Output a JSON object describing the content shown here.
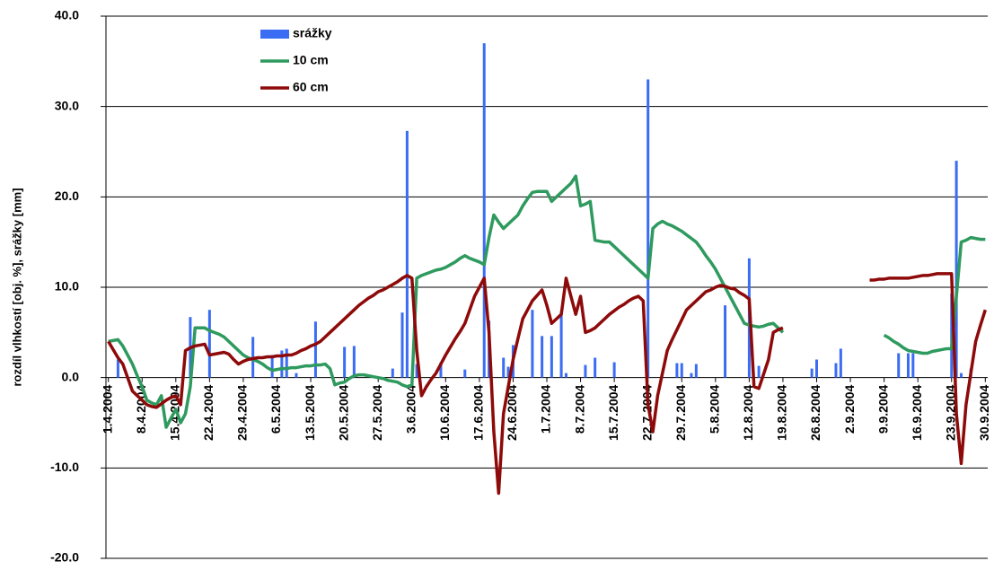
{
  "chart_data": {
    "type": "bar",
    "y_label": "rozdíl vlhkostí [obj. %], srážky [mm]",
    "categories": [
      "1.4.2004",
      null,
      null,
      null,
      null,
      null,
      null,
      "8.4.2004",
      null,
      null,
      null,
      null,
      null,
      null,
      "15.4.2004",
      null,
      null,
      null,
      null,
      null,
      null,
      "22.4.2004",
      null,
      null,
      null,
      null,
      null,
      null,
      "29.4.2004",
      null,
      null,
      null,
      null,
      null,
      null,
      "6.5.2004",
      null,
      null,
      null,
      null,
      null,
      null,
      "13.5.2004",
      null,
      null,
      null,
      null,
      null,
      null,
      "20.5.2004",
      null,
      null,
      null,
      null,
      null,
      null,
      "27.5.2004",
      null,
      null,
      null,
      null,
      null,
      null,
      "3.6.2004",
      null,
      null,
      null,
      null,
      null,
      null,
      "10.6.2004",
      null,
      null,
      null,
      null,
      null,
      null,
      "17.6.2004",
      null,
      null,
      null,
      null,
      null,
      null,
      "24.6.2004",
      null,
      null,
      null,
      null,
      null,
      null,
      "1.7.2004",
      null,
      null,
      null,
      null,
      null,
      null,
      "8.7.2004",
      null,
      null,
      null,
      null,
      null,
      null,
      "15.7.2004",
      null,
      null,
      null,
      null,
      null,
      null,
      "22.7.2004",
      null,
      null,
      null,
      null,
      null,
      null,
      "29.7.2004",
      null,
      null,
      null,
      null,
      null,
      null,
      "5.8.2004",
      null,
      null,
      null,
      null,
      null,
      null,
      "12.8.2004",
      null,
      null,
      null,
      null,
      null,
      null,
      "19.8.2004",
      null,
      null,
      null,
      null,
      null,
      null,
      "26.8.2004",
      null,
      null,
      null,
      null,
      null,
      null,
      "2.9.2004",
      null,
      null,
      null,
      null,
      null,
      null,
      "9.9.2004",
      null,
      null,
      null,
      null,
      null,
      null,
      "16.9.2004",
      null,
      null,
      null,
      null,
      null,
      null,
      "23.9.2004",
      null,
      null,
      null,
      null,
      null,
      null,
      "30.9.2004"
    ],
    "series": [
      {
        "name": "srážky",
        "type": "bar",
        "color": "#3a6cf4",
        "values": [
          0,
          0,
          2.0,
          0,
          0,
          0,
          0,
          0,
          0,
          0,
          0,
          0,
          0,
          0,
          0,
          0,
          0,
          6.7,
          0,
          0,
          0,
          7.5,
          0,
          0,
          0,
          0,
          0,
          0,
          0,
          0,
          4.5,
          0,
          0,
          0,
          2.5,
          0,
          3.0,
          3.2,
          0,
          0.5,
          0,
          0,
          0,
          6.2,
          0,
          0,
          0,
          0,
          0,
          3.4,
          0,
          3.5,
          0,
          0,
          0,
          0,
          0,
          0,
          0,
          1.0,
          0,
          7.2,
          27.3,
          0,
          1.5,
          0,
          0,
          0,
          0,
          1.7,
          0,
          0,
          0,
          0,
          0.9,
          0,
          0,
          0,
          37.0,
          6.3,
          0,
          0,
          2.2,
          1.2,
          3.6,
          0,
          0,
          0,
          7.5,
          0,
          4.6,
          0,
          4.6,
          0,
          7.3,
          0.5,
          0,
          0,
          0,
          1.4,
          0,
          2.2,
          0,
          0,
          0,
          1.7,
          0,
          0,
          0,
          0,
          0,
          0,
          33.0,
          0,
          0,
          0,
          0,
          0,
          1.6,
          1.6,
          0,
          0.5,
          1.5,
          0,
          0,
          0,
          0,
          0,
          8.0,
          0,
          0,
          0,
          0,
          13.2,
          0,
          1.3,
          0,
          0,
          0,
          0,
          0,
          0,
          0,
          0,
          0,
          0,
          1.0,
          2.0,
          0,
          0,
          0,
          1.6,
          3.2,
          0,
          0,
          0,
          0,
          0,
          0,
          0,
          0,
          0,
          0,
          0,
          2.7,
          0,
          2.7,
          2.7,
          0,
          0,
          0,
          0,
          0,
          0,
          0,
          9.3,
          24.0,
          0.5,
          0,
          1.0,
          0,
          0,
          0
        ]
      },
      {
        "name": "10 cm",
        "type": "line",
        "color": "#2e9a5e",
        "values": [
          4.0,
          4.1,
          4.2,
          3.5,
          2.5,
          1.5,
          0.2,
          -1.0,
          -2.5,
          -2.8,
          -3.0,
          -2.0,
          -5.5,
          -4.5,
          -3.5,
          -5.0,
          -4.0,
          -1.0,
          5.5,
          5.5,
          5.5,
          5.2,
          5.0,
          4.8,
          4.5,
          4.0,
          3.5,
          3.0,
          2.5,
          2.2,
          2.0,
          1.8,
          1.5,
          1.1,
          0.8,
          0.9,
          1.0,
          1.0,
          1.1,
          1.1,
          1.2,
          1.3,
          1.3,
          1.4,
          1.4,
          1.5,
          1.0,
          -0.8,
          -0.6,
          -0.5,
          -0.1,
          0.2,
          0.3,
          0.3,
          0.2,
          0.1,
          0.0,
          -0.1,
          -0.3,
          -0.4,
          -0.5,
          -0.8,
          -1.0,
          -0.8,
          11.0,
          11.3,
          11.5,
          11.7,
          11.9,
          12.0,
          12.2,
          12.5,
          12.8,
          13.2,
          13.5,
          13.2,
          13.0,
          12.8,
          12.5,
          15.5,
          18.0,
          17.2,
          16.5,
          17.0,
          17.5,
          18.0,
          19.0,
          19.8,
          20.5,
          20.6,
          20.6,
          20.6,
          19.5,
          20.0,
          20.5,
          21.0,
          21.5,
          22.3,
          19.0,
          19.2,
          19.5,
          15.2,
          15.1,
          15.0,
          15.0,
          14.5,
          14.0,
          13.5,
          13.0,
          12.5,
          12.0,
          11.5,
          11.0,
          16.5,
          17.0,
          17.3,
          17.0,
          16.8,
          16.5,
          16.2,
          15.8,
          15.4,
          15.0,
          14.3,
          13.5,
          12.8,
          12.0,
          11.0,
          10.0,
          9.0,
          8.0,
          7.0,
          6.0,
          5.8,
          5.7,
          5.6,
          5.7,
          5.9,
          6.0,
          5.5,
          5.0,
          null,
          null,
          null,
          null,
          null,
          null,
          null,
          null,
          null,
          null,
          null,
          null,
          null,
          null,
          null,
          null,
          null,
          null,
          null,
          null,
          4.7,
          4.4,
          4.0,
          3.7,
          3.3,
          3.0,
          2.9,
          2.8,
          2.7,
          2.7,
          2.9,
          3.0,
          3.1,
          3.2,
          3.2,
          9.0,
          15.0,
          15.2,
          15.5,
          15.4,
          15.3,
          15.3
        ]
      },
      {
        "name": "60 cm",
        "type": "line",
        "color": "#8e0a0a",
        "values": [
          4.0,
          3.1,
          2.2,
          1.5,
          0.0,
          -1.5,
          -2.0,
          -2.5,
          -3.0,
          -3.2,
          -3.3,
          -2.9,
          -2.5,
          -2.2,
          -2.0,
          -3.0,
          3.0,
          3.3,
          3.5,
          3.6,
          3.7,
          2.5,
          2.6,
          2.7,
          2.8,
          2.6,
          2.0,
          1.5,
          1.8,
          2.0,
          2.1,
          2.2,
          2.2,
          2.3,
          2.3,
          2.4,
          2.4,
          2.5,
          2.5,
          2.7,
          3.0,
          3.2,
          3.5,
          3.7,
          4.0,
          4.5,
          5.0,
          5.5,
          6.0,
          6.5,
          7.0,
          7.5,
          8.0,
          8.4,
          8.8,
          9.1,
          9.5,
          9.7,
          10.0,
          10.3,
          10.6,
          11.0,
          11.3,
          11.0,
          3.0,
          -2.0,
          -1.0,
          -0.2,
          0.5,
          1.5,
          2.5,
          3.4,
          4.3,
          5.1,
          6.0,
          7.5,
          9.0,
          10.0,
          11.0,
          5.0,
          -6.0,
          -12.8,
          -4.0,
          -1.0,
          2.0,
          4.3,
          6.5,
          7.5,
          8.5,
          9.1,
          9.7,
          8.0,
          6.0,
          6.5,
          7.0,
          11.0,
          9.0,
          7.0,
          9.0,
          5.0,
          5.2,
          5.5,
          6.0,
          6.5,
          7.0,
          7.4,
          7.8,
          8.1,
          8.5,
          8.8,
          9.0,
          8.5,
          -3.0,
          -6.0,
          -2.0,
          0.5,
          3.0,
          4.2,
          5.3,
          6.4,
          7.5,
          8.0,
          8.5,
          9.0,
          9.5,
          9.7,
          10.0,
          10.2,
          10.1,
          9.9,
          9.8,
          9.4,
          9.1,
          8.7,
          -1.0,
          -1.2,
          0.4,
          2.0,
          5.0,
          5.3,
          5.5,
          null,
          null,
          null,
          null,
          null,
          null,
          null,
          null,
          null,
          null,
          null,
          null,
          null,
          null,
          null,
          null,
          null,
          10.8,
          10.8,
          10.9,
          10.9,
          11.0,
          11.0,
          11.0,
          11.0,
          11.0,
          11.1,
          11.2,
          11.3,
          11.3,
          11.4,
          11.5,
          11.5,
          11.5,
          11.5,
          -4.0,
          -9.5,
          -3.0,
          0.5,
          4.0,
          5.8,
          7.5
        ]
      }
    ],
    "ylim": [
      -20,
      40
    ],
    "yticks": [
      {
        "value": -20,
        "label": "-20.0"
      },
      {
        "value": -10,
        "label": "-10.0"
      },
      {
        "value": 0,
        "label": "0.0"
      },
      {
        "value": 10,
        "label": "10.0"
      },
      {
        "value": 20,
        "label": "20.0"
      },
      {
        "value": 30,
        "label": "30.0"
      },
      {
        "value": 40,
        "label": "40.0"
      }
    ],
    "grid": true
  }
}
